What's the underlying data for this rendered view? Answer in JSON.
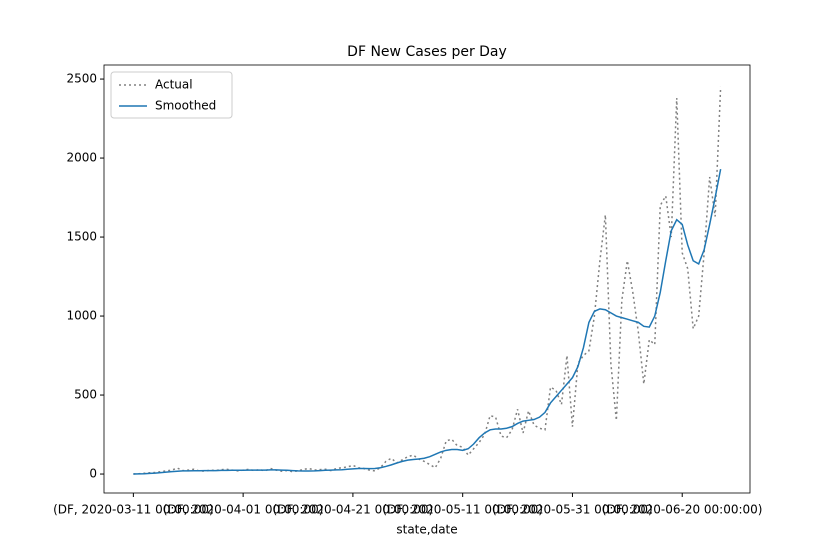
{
  "chart_data": {
    "type": "line",
    "title": "DF New Cases per Day",
    "x_label": "state,date",
    "categories": [
      "(DF, 2020-03-11 00:00:00)",
      null,
      null,
      null,
      null,
      null,
      null,
      null,
      null,
      null,
      null,
      null,
      null,
      null,
      null,
      null,
      null,
      null,
      null,
      null,
      "(DF, 2020-04-01 00:00:00)",
      null,
      null,
      null,
      null,
      null,
      null,
      null,
      null,
      null,
      null,
      null,
      null,
      null,
      null,
      null,
      null,
      null,
      null,
      null,
      "(DF, 2020-04-21 00:00:00)",
      null,
      null,
      null,
      null,
      null,
      null,
      null,
      null,
      null,
      null,
      null,
      null,
      null,
      null,
      null,
      null,
      null,
      null,
      null,
      "(DF, 2020-05-11 00:00:00)",
      null,
      null,
      null,
      null,
      null,
      null,
      null,
      null,
      null,
      null,
      null,
      null,
      null,
      null,
      null,
      null,
      null,
      null,
      null,
      "(DF, 2020-05-31 00:00:00)",
      null,
      null,
      null,
      null,
      null,
      null,
      null,
      null,
      null,
      null,
      null,
      null,
      null,
      null,
      null,
      null,
      null,
      null,
      null,
      "(DF, 2020-06-20 00:00:00)",
      null,
      null,
      null,
      null,
      null,
      null,
      null
    ],
    "series": [
      {
        "name": "Actual",
        "color": "#808080",
        "linestyle": "dotted",
        "values": [
          0,
          2,
          5,
          8,
          10,
          15,
          20,
          25,
          38,
          22,
          25,
          30,
          20,
          18,
          25,
          22,
          28,
          30,
          25,
          20,
          25,
          30,
          22,
          28,
          20,
          35,
          25,
          18,
          22,
          15,
          20,
          30,
          35,
          25,
          28,
          30,
          22,
          35,
          40,
          45,
          55,
          40,
          35,
          25,
          20,
          40,
          80,
          100,
          70,
          90,
          110,
          120,
          95,
          80,
          60,
          40,
          100,
          210,
          220,
          180,
          170,
          120,
          160,
          200,
          250,
          370,
          360,
          240,
          230,
          280,
          410,
          260,
          400,
          310,
          290,
          280,
          550,
          530,
          440,
          750,
          300,
          700,
          750,
          780,
          1000,
          1350,
          1640,
          700,
          340,
          1100,
          1350,
          1150,
          900,
          570,
          850,
          820,
          1700,
          1760,
          1500,
          2380,
          1400,
          1300,
          920,
          1000,
          1400,
          1880,
          1630,
          2450
        ]
      },
      {
        "name": "Smoothed",
        "color": "#1f77b4",
        "linestyle": "solid",
        "values": [
          0,
          1,
          2,
          4,
          6,
          9,
          12,
          15,
          18,
          20,
          20,
          21,
          21,
          22,
          22,
          22,
          23,
          23,
          24,
          24,
          24,
          25,
          25,
          25,
          25,
          26,
          26,
          25,
          24,
          22,
          20,
          19,
          19,
          20,
          22,
          24,
          25,
          26,
          27,
          30,
          33,
          35,
          35,
          34,
          35,
          40,
          48,
          58,
          70,
          80,
          88,
          92,
          95,
          100,
          110,
          125,
          140,
          150,
          155,
          155,
          150,
          160,
          190,
          230,
          260,
          280,
          285,
          285,
          290,
          300,
          320,
          335,
          340,
          345,
          360,
          390,
          450,
          490,
          530,
          570,
          610,
          680,
          800,
          960,
          1030,
          1045,
          1040,
          1020,
          1000,
          990,
          980,
          970,
          960,
          935,
          930,
          1000,
          1150,
          1350,
          1540,
          1610,
          1580,
          1450,
          1350,
          1330,
          1420,
          1580,
          1750,
          1930
        ]
      }
    ],
    "xlim": [
      -5.35,
      112.35
    ],
    "ylim": [
      -120,
      2589
    ],
    "yticks": [
      0,
      500,
      1000,
      1500,
      2000,
      2500
    ],
    "grid": false,
    "legend": "upper left"
  }
}
